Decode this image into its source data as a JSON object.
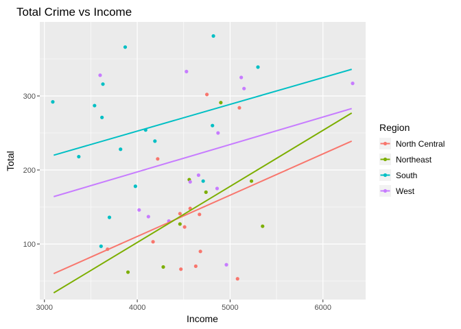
{
  "chart_data": {
    "type": "scatter",
    "title": "Total Crime vs Income",
    "xlabel": "Income",
    "ylabel": "Total",
    "xlim": [
      2950,
      6460
    ],
    "ylim": [
      25,
      400
    ],
    "x_ticks": [
      3000,
      4000,
      5000,
      6000
    ],
    "y_ticks": [
      100,
      200,
      300
    ],
    "x_minor_ticks": [
      3500,
      4500,
      5500
    ],
    "y_minor_ticks": [
      50,
      150,
      250,
      350
    ],
    "grid": true,
    "legend": {
      "title": "Region",
      "placement": "right"
    },
    "series": [
      {
        "name": "North Central",
        "color": "#F8766D",
        "points": [
          [
            3680,
            93
          ],
          [
            4170,
            103
          ],
          [
            4220,
            215
          ],
          [
            4460,
            141
          ],
          [
            4470,
            66
          ],
          [
            4510,
            123
          ],
          [
            4570,
            148
          ],
          [
            4630,
            70
          ],
          [
            4670,
            140
          ],
          [
            4680,
            90
          ],
          [
            4750,
            302
          ],
          [
            5080,
            53
          ],
          [
            5100,
            284
          ]
        ],
        "trend": [
          [
            3100,
            60
          ],
          [
            6310,
            239
          ]
        ]
      },
      {
        "name": "Northeast",
        "color": "#7CAE00",
        "points": [
          [
            3900,
            62
          ],
          [
            4280,
            69
          ],
          [
            4460,
            127
          ],
          [
            4560,
            187
          ],
          [
            4740,
            170
          ],
          [
            4900,
            291
          ],
          [
            5230,
            185
          ],
          [
            5350,
            124
          ]
        ],
        "trend": [
          [
            3100,
            34
          ],
          [
            6310,
            277
          ]
        ]
      },
      {
        "name": "South",
        "color": "#00BFC4",
        "points": [
          [
            3090,
            292
          ],
          [
            3370,
            218
          ],
          [
            3540,
            287
          ],
          [
            3610,
            97
          ],
          [
            3620,
            271
          ],
          [
            3630,
            316
          ],
          [
            3700,
            136
          ],
          [
            3820,
            228
          ],
          [
            3870,
            366
          ],
          [
            3980,
            178
          ],
          [
            4090,
            254
          ],
          [
            4190,
            239
          ],
          [
            4710,
            185
          ],
          [
            4810,
            260
          ],
          [
            4820,
            381
          ],
          [
            5300,
            339
          ]
        ],
        "trend": [
          [
            3100,
            220
          ],
          [
            6310,
            336
          ]
        ]
      },
      {
        "name": "West",
        "color": "#C77CFF",
        "points": [
          [
            3600,
            328
          ],
          [
            4020,
            146
          ],
          [
            4120,
            137
          ],
          [
            4340,
            131
          ],
          [
            4530,
            333
          ],
          [
            4570,
            184
          ],
          [
            4660,
            193
          ],
          [
            4860,
            175
          ],
          [
            4870,
            250
          ],
          [
            4960,
            72
          ],
          [
            5120,
            325
          ],
          [
            5150,
            310
          ],
          [
            6320,
            317
          ]
        ],
        "trend": [
          [
            3100,
            164
          ],
          [
            6310,
            283
          ]
        ]
      }
    ]
  }
}
